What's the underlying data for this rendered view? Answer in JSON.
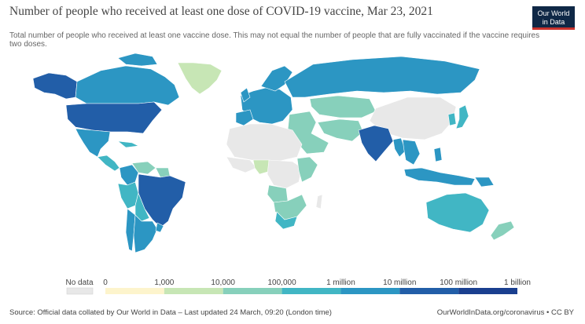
{
  "header": {
    "title": "Number of people who received at least one dose of COVID-19 vaccine, Mar 23, 2021",
    "subtitle": "Total number of people who received at least one vaccine dose. This may not equal the number of people that are fully vaccinated if the vaccine requires two doses.",
    "logo_line1": "Our World",
    "logo_line2": "in Data"
  },
  "legend": {
    "no_data_label": "No data",
    "no_data_color": "#e8e8e8",
    "bins": [
      {
        "label": "0",
        "color": "#fdf4cc"
      },
      {
        "label": "1,000",
        "color": "#c7e6b5"
      },
      {
        "label": "10,000",
        "color": "#87d0bb"
      },
      {
        "label": "100,000",
        "color": "#41b6c4"
      },
      {
        "label": "1 million",
        "color": "#2c96c3"
      },
      {
        "label": "10 million",
        "color": "#225ea8"
      },
      {
        "label": "100 million",
        "color": "#1a3f8f"
      }
    ],
    "end_label": "1 billion"
  },
  "chart_data": {
    "type": "map",
    "metric": "people who received at least one dose",
    "date": "Mar 23, 2021",
    "scale": "log",
    "scale_colors": [
      "#fdf4cc",
      "#c7e6b5",
      "#87d0bb",
      "#41b6c4",
      "#2c96c3",
      "#225ea8",
      "#1a3f8f"
    ],
    "regions": [
      {
        "name": "Alaska",
        "color": "#225ea8"
      },
      {
        "name": "Canada",
        "color": "#2c96c3"
      },
      {
        "name": "Greenland",
        "color": "#c7e6b5"
      },
      {
        "name": "United States",
        "color": "#225ea8"
      },
      {
        "name": "Mexico",
        "color": "#2c96c3"
      },
      {
        "name": "Central America",
        "color": "#41b6c4"
      },
      {
        "name": "Colombia",
        "color": "#2c96c3"
      },
      {
        "name": "Venezuela",
        "color": "#87d0bb"
      },
      {
        "name": "Peru",
        "color": "#41b6c4"
      },
      {
        "name": "Brazil",
        "color": "#225ea8"
      },
      {
        "name": "Bolivia",
        "color": "#41b6c4"
      },
      {
        "name": "Chile",
        "color": "#2c96c3"
      },
      {
        "name": "Argentina",
        "color": "#2c96c3"
      },
      {
        "name": "Europe",
        "color": "#2c96c3"
      },
      {
        "name": "Russia",
        "color": "#2c96c3"
      },
      {
        "name": "Kazakhstan",
        "color": "#87d0bb"
      },
      {
        "name": "China",
        "color": "#e8e8e8"
      },
      {
        "name": "India",
        "color": "#225ea8"
      },
      {
        "name": "Pakistan",
        "color": "#87d0bb"
      },
      {
        "name": "North Africa",
        "color": "#e8e8e8"
      },
      {
        "name": "Nigeria",
        "color": "#c7e6b5"
      },
      {
        "name": "Central Africa",
        "color": "#e8e8e8"
      },
      {
        "name": "Kenya",
        "color": "#87d0bb"
      },
      {
        "name": "Angola",
        "color": "#87d0bb"
      },
      {
        "name": "South Africa",
        "color": "#41b6c4"
      },
      {
        "name": "Southeast Asia",
        "color": "#2c96c3"
      },
      {
        "name": "Indonesia",
        "color": "#2c96c3"
      },
      {
        "name": "Japan",
        "color": "#41b6c4"
      },
      {
        "name": "Australia",
        "color": "#41b6c4"
      },
      {
        "name": "New Zealand",
        "color": "#87d0bb"
      }
    ]
  },
  "footer": {
    "source": "Source: Official data collated by Our World in Data – Last updated 24 March, 09:20 (London time)",
    "url": "OurWorldInData.org/coronavirus • CC BY"
  }
}
